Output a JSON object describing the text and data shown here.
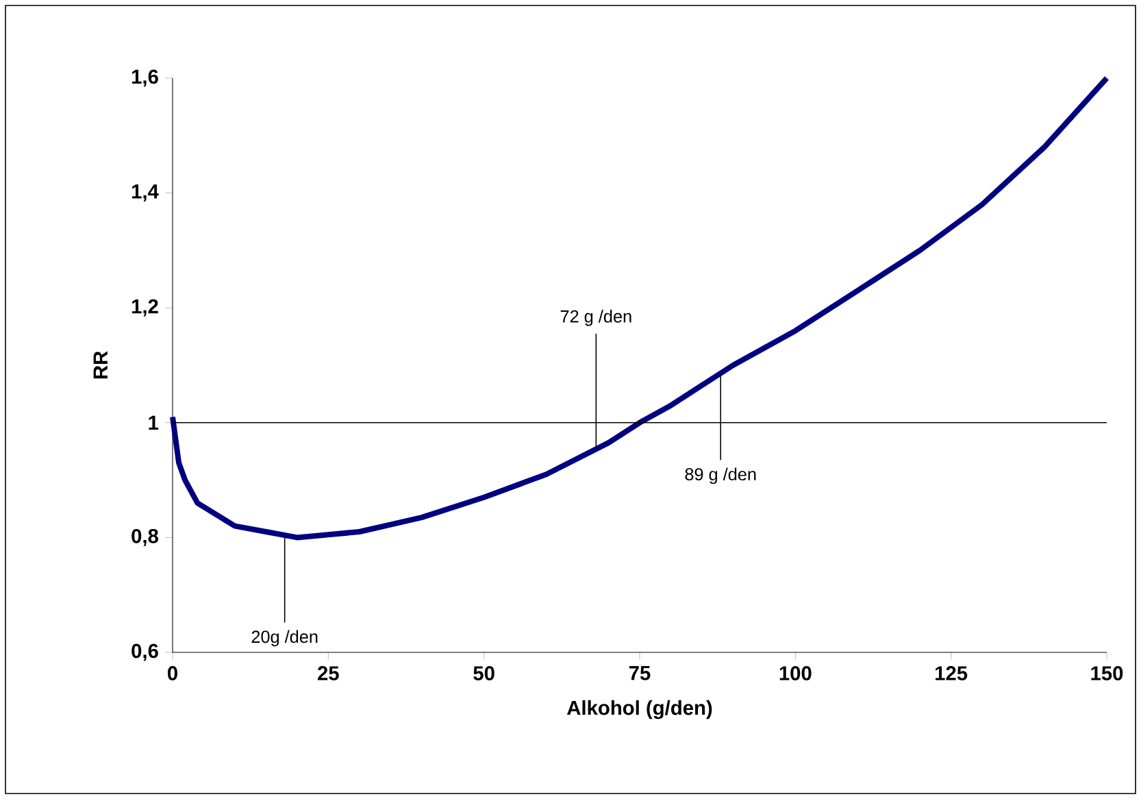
{
  "chart_data": {
    "type": "line",
    "xlabel": "Alkohol (g/den)",
    "ylabel": "RR",
    "x": [
      0,
      1,
      2,
      4,
      7,
      10,
      15,
      20,
      25,
      30,
      40,
      50,
      60,
      70,
      75,
      80,
      90,
      100,
      110,
      120,
      130,
      140,
      150
    ],
    "series": [
      {
        "color": "#000080",
        "values": [
          1.01,
          0.93,
          0.9,
          0.86,
          0.84,
          0.82,
          0.81,
          0.8,
          0.805,
          0.81,
          0.835,
          0.87,
          0.91,
          0.965,
          1.0,
          1.03,
          1.1,
          1.16,
          1.23,
          1.3,
          1.38,
          1.48,
          1.6
        ]
      }
    ],
    "xlim": [
      0,
      150
    ],
    "xticks": [
      0,
      25,
      50,
      75,
      100,
      125,
      150
    ],
    "ylim": [
      0.6,
      1.6
    ],
    "yticks": [
      {
        "value": 0.6,
        "label": "0,6"
      },
      {
        "value": 0.8,
        "label": "0,8"
      },
      {
        "value": 1,
        "label": "1"
      },
      {
        "value": 1.2,
        "label": "1,2"
      },
      {
        "value": 1.4,
        "label": "1,4"
      },
      {
        "value": 1.6,
        "label": "1,6"
      }
    ],
    "ref_lines": [
      {
        "axis": "y",
        "value": 1
      }
    ],
    "annotations": [
      {
        "text": "20g /den",
        "x": 18,
        "y": 0.802
      },
      {
        "text": "72 g /den",
        "x": 68,
        "y": 0.955
      },
      {
        "text": "89 g /den",
        "x": 88,
        "y": 1.085
      }
    ],
    "marker": "none",
    "line_style": "solid"
  }
}
